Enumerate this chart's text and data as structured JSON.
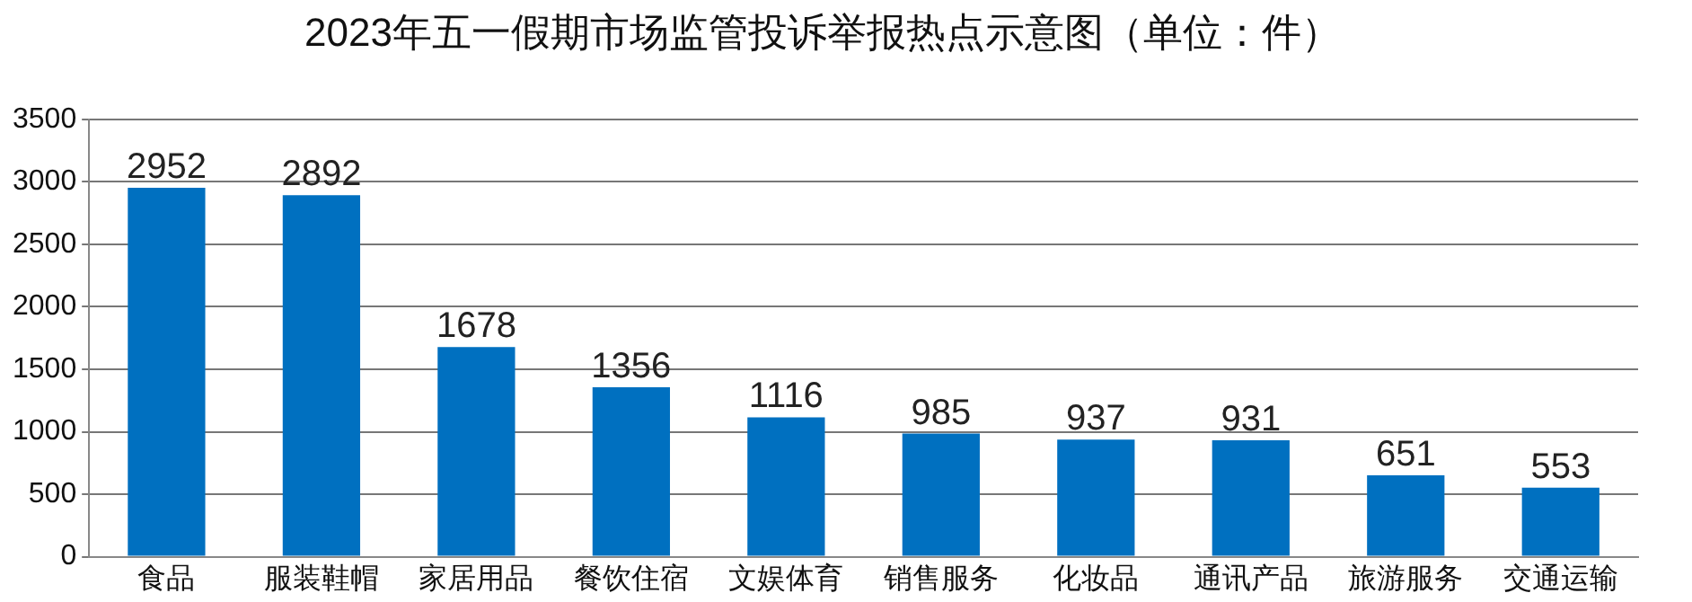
{
  "chart_data": {
    "type": "bar",
    "title": "2023年五一假期市场监管投诉举报热点示意图（单位：件）",
    "categories": [
      "食品",
      "服装鞋帽",
      "家居用品",
      "餐饮住宿",
      "文娱体育",
      "销售服务",
      "化妆品",
      "通讯产品",
      "旅游服务",
      "交通运输"
    ],
    "values": [
      2952,
      2892,
      1678,
      1356,
      1116,
      985,
      937,
      931,
      651,
      553
    ],
    "color": "#0070c0",
    "ylim": [
      0,
      3500
    ],
    "yticks": [
      0,
      500,
      1000,
      1500,
      2000,
      2500,
      3000,
      3500
    ],
    "grid": "y",
    "data_labels": true,
    "legend": false
  }
}
